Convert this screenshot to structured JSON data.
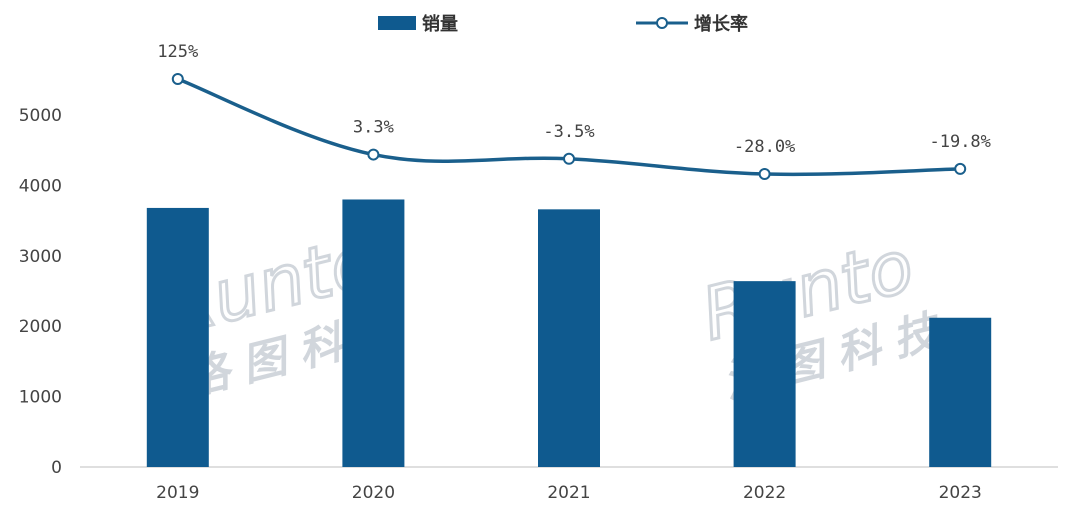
{
  "legend": {
    "bar_label": "销量",
    "line_label": "增长率"
  },
  "watermark": {
    "latin": "Runto",
    "cjk": "洛图科技"
  },
  "colors": {
    "bar": "#0f5a8f",
    "line": "#1a5f8c",
    "axis": "#bfbfbf"
  },
  "chart_data": {
    "type": "bar",
    "categories": [
      "2019",
      "2020",
      "2021",
      "2022",
      "2023"
    ],
    "ylim": [
      0,
      5000
    ],
    "yticks": [
      0,
      1000,
      2000,
      3000,
      4000,
      5000
    ],
    "series": [
      {
        "name": "销量",
        "type": "bar",
        "values": [
          3680,
          3800,
          3660,
          2640,
          2120
        ]
      },
      {
        "name": "增长率",
        "type": "line",
        "values": [
          125,
          3.3,
          -3.5,
          -28.0,
          -19.8
        ],
        "labels": [
          "125%",
          "3.3%",
          "-3.5%",
          "-28.0%",
          "-19.8%"
        ]
      }
    ]
  }
}
